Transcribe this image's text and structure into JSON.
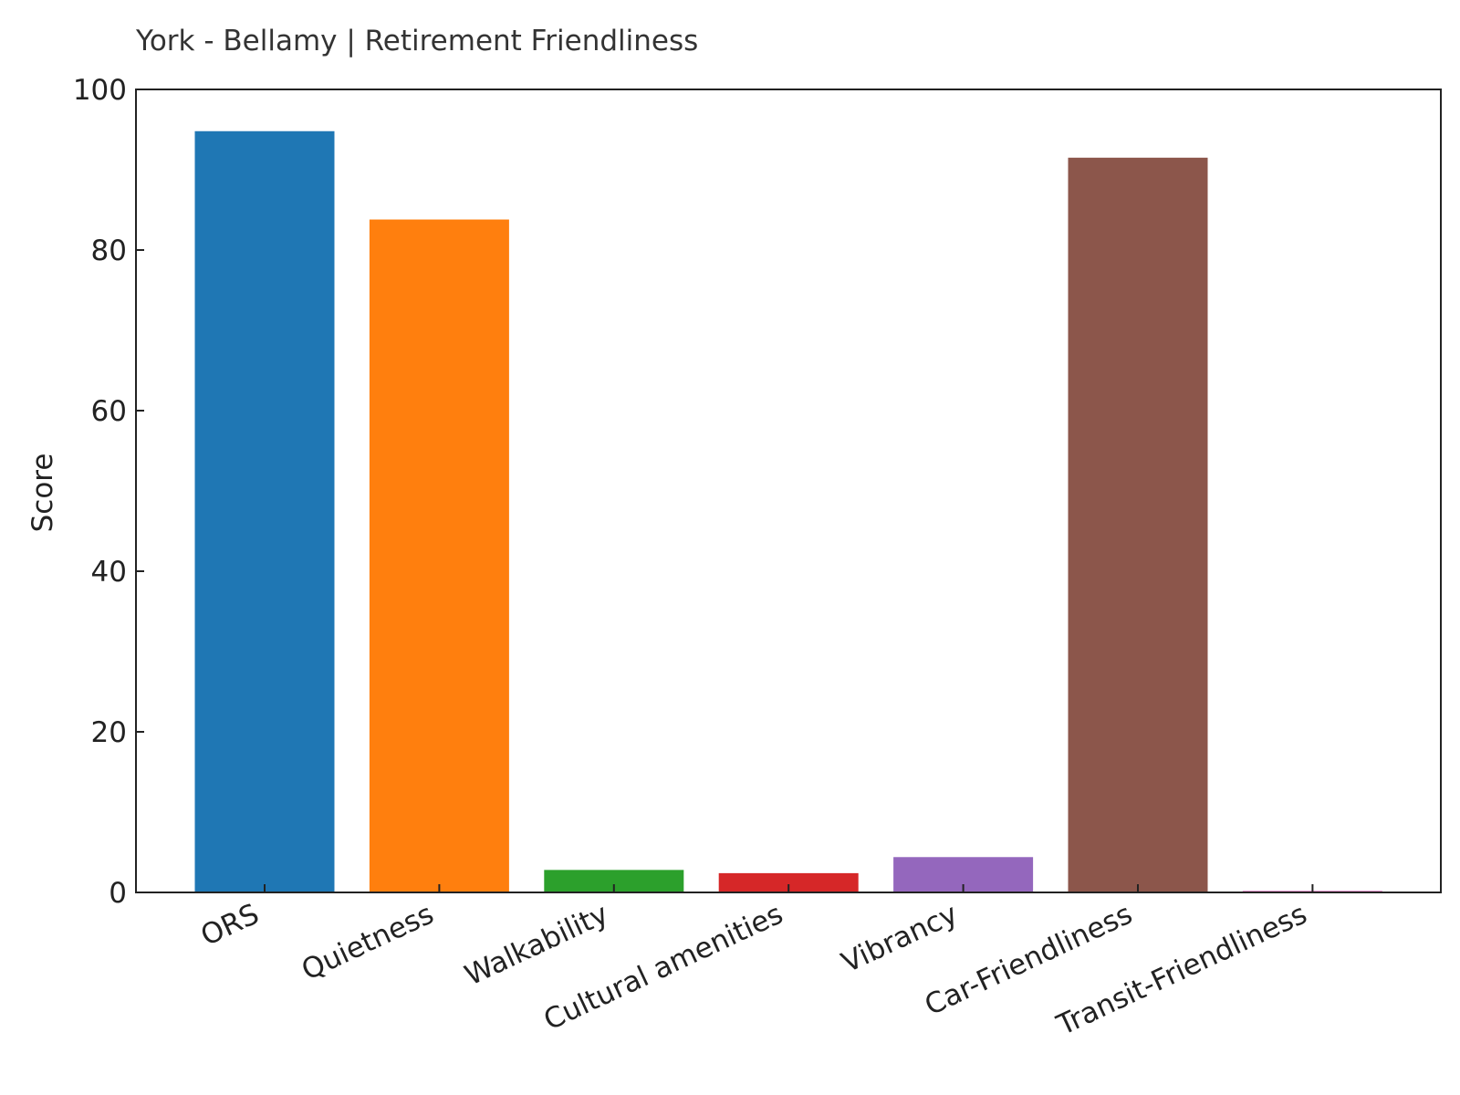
{
  "chart_data": {
    "type": "bar",
    "title": "York - Bellamy | Retirement Friendliness",
    "xlabel": "",
    "ylabel": "Score",
    "ylim": [
      0,
      100
    ],
    "yticks": [
      "0",
      "20",
      "40",
      "60",
      "80",
      "100"
    ],
    "categories": [
      "ORS",
      "Quietness",
      "Walkability",
      "Cultural amenities",
      "Vibrancy",
      "Car-Friendliness",
      "Transit-Friendliness"
    ],
    "values": [
      94.8,
      83.8,
      2.8,
      2.4,
      4.4,
      91.5,
      0.2
    ],
    "colors": [
      "#1f77b4",
      "#ff7f0e",
      "#2ca02c",
      "#d62728",
      "#9467bd",
      "#8c564b",
      "#e377c2"
    ],
    "grid": false,
    "legend": "none"
  }
}
